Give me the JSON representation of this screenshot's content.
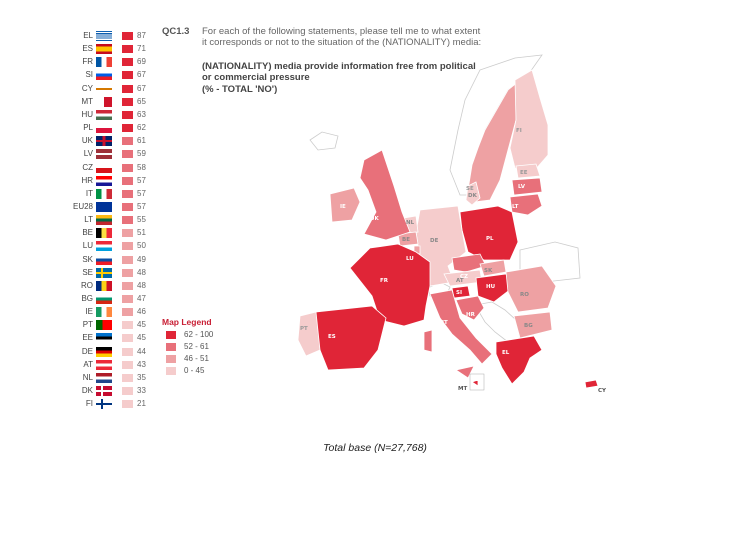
{
  "question_code": "QC1.3",
  "question_text": "For each of the following statements, please tell me to what extent it corresponds or not to the situation of the (NATIONALITY) media:",
  "statement": "(NATIONALITY) media provide information free from political or commercial pressure",
  "measure": "(% - TOTAL 'NO')",
  "footer": "Total base (N=27,768)",
  "legend": {
    "title": "Map Legend",
    "items": [
      {
        "label": "62 - 100",
        "color": "#e02537"
      },
      {
        "label": "52 - 61",
        "color": "#e8707a"
      },
      {
        "label": "46 - 51",
        "color": "#eea1a3"
      },
      {
        "label": "0 - 45",
        "color": "#f5cccc"
      }
    ]
  },
  "ranking": [
    {
      "code": "EL",
      "value": 87,
      "color": "#e02537"
    },
    {
      "code": "ES",
      "value": 71,
      "color": "#e02537"
    },
    {
      "code": "FR",
      "value": 69,
      "color": "#e02537"
    },
    {
      "code": "SI",
      "value": 67,
      "color": "#e02537"
    },
    {
      "code": "CY",
      "value": 67,
      "color": "#e02537"
    },
    {
      "code": "MT",
      "value": 65,
      "color": "#e02537"
    },
    {
      "code": "HU",
      "value": 63,
      "color": "#e02537"
    },
    {
      "code": "PL",
      "value": 62,
      "color": "#e02537"
    },
    {
      "code": "UK",
      "value": 61,
      "color": "#e8707a"
    },
    {
      "code": "LV",
      "value": 59,
      "color": "#e8707a"
    },
    {
      "code": "CZ",
      "value": 58,
      "color": "#e8707a"
    },
    {
      "code": "HR",
      "value": 57,
      "color": "#e8707a"
    },
    {
      "code": "IT",
      "value": 57,
      "color": "#e8707a"
    },
    {
      "code": "EU28",
      "value": 57,
      "color": "#e8707a"
    },
    {
      "code": "LT",
      "value": 55,
      "color": "#e8707a"
    },
    {
      "code": "BE",
      "value": 51,
      "color": "#eea1a3"
    },
    {
      "code": "LU",
      "value": 50,
      "color": "#eea1a3"
    },
    {
      "code": "SK",
      "value": 49,
      "color": "#eea1a3"
    },
    {
      "code": "SE",
      "value": 48,
      "color": "#eea1a3"
    },
    {
      "code": "RO",
      "value": 48,
      "color": "#eea1a3"
    },
    {
      "code": "BG",
      "value": 47,
      "color": "#eea1a3"
    },
    {
      "code": "IE",
      "value": 46,
      "color": "#eea1a3"
    },
    {
      "code": "PT",
      "value": 45,
      "color": "#f5cccc"
    },
    {
      "code": "EE",
      "value": 45,
      "color": "#f5cccc"
    },
    {
      "code": "DE",
      "value": 44,
      "color": "#f5cccc"
    },
    {
      "code": "AT",
      "value": 43,
      "color": "#f5cccc"
    },
    {
      "code": "NL",
      "value": 35,
      "color": "#f5cccc"
    },
    {
      "code": "DK",
      "value": 33,
      "color": "#f5cccc"
    },
    {
      "code": "FI",
      "value": 21,
      "color": "#f5cccc"
    }
  ]
}
